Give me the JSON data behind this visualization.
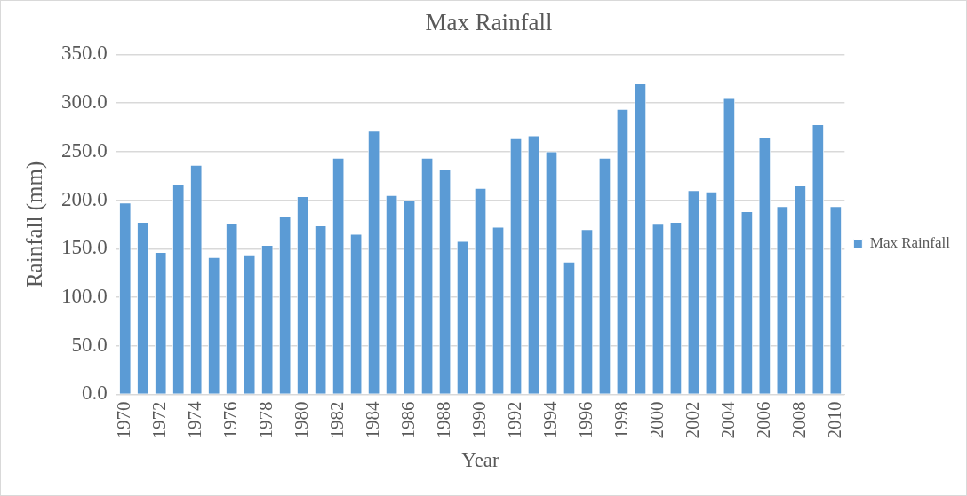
{
  "chart_data": {
    "type": "bar",
    "title": "Max Rainfall",
    "xlabel": "Year",
    "ylabel": "Rainfall (mm)",
    "categories": [
      "1970",
      null,
      "1972",
      null,
      "1974",
      null,
      "1976",
      null,
      "1978",
      null,
      "1980",
      null,
      "1982",
      null,
      "1984",
      null,
      "1986",
      null,
      "1988",
      null,
      "1990",
      null,
      "1992",
      null,
      "1994",
      null,
      "1996",
      null,
      "1998",
      null,
      "2000",
      null,
      "2002",
      null,
      "2004",
      null,
      "2006",
      null,
      "2008",
      null,
      "2010"
    ],
    "series": [
      {
        "name": "Max Rainfall",
        "color": "#5b9bd5",
        "values": [
          197.5,
          177.7,
          146.6,
          216.6,
          236.3,
          141.4,
          176.6,
          144.0,
          153.9,
          183.9,
          204.1,
          174.1,
          243.7,
          165.3,
          271.5,
          205.2,
          200.1,
          243.7,
          231.6,
          157.9,
          212.5,
          172.6,
          263.8,
          266.8,
          250.3,
          136.7,
          170.0,
          243.7,
          293.9,
          320.3,
          175.5,
          177.7,
          210.3,
          208.9,
          305.2,
          188.7,
          265.3,
          193.8,
          215.1,
          278.1,
          193.8
        ]
      }
    ],
    "ylim": [
      0,
      350
    ],
    "yticks": [
      {
        "value": 0,
        "label": "0.0"
      },
      {
        "value": 50,
        "label": "50.0"
      },
      {
        "value": 100,
        "label": "100.0"
      },
      {
        "value": 150,
        "label": "150.0"
      },
      {
        "value": 200,
        "label": "200.0"
      },
      {
        "value": 250,
        "label": "250.0"
      },
      {
        "value": 300,
        "label": "300.0"
      },
      {
        "value": 350,
        "label": "350.0"
      }
    ],
    "grid": "y",
    "legend": "right"
  }
}
